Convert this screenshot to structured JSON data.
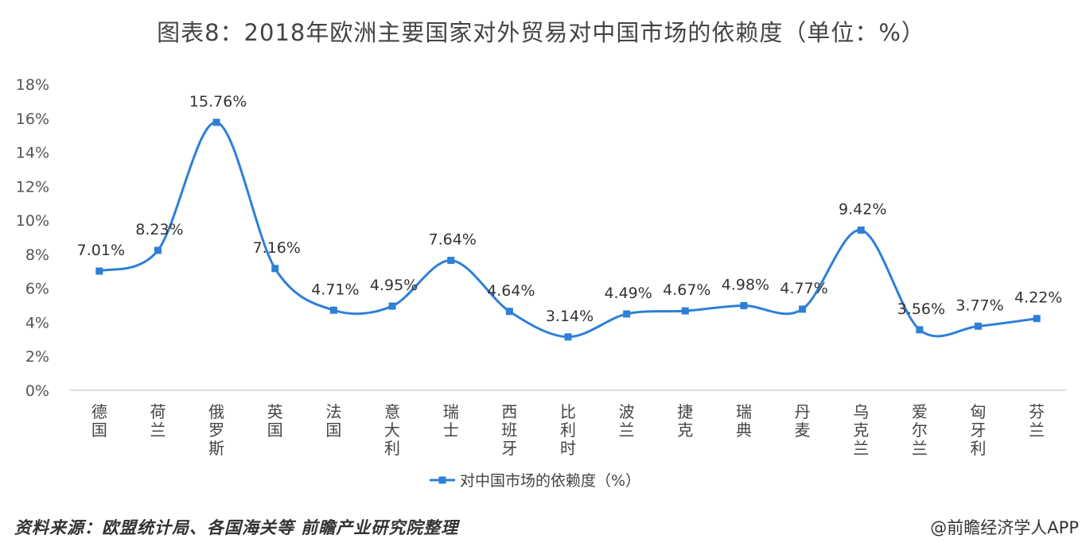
{
  "title": "图表8：2018年欧洲主要国家对外贸易对中国市场的依赖度（单位：%）",
  "source": "资料来源：欧盟统计局、各国海关等 前瞻产业研究院整理",
  "credit": "@前瞻经济学人APP",
  "colors": {
    "line": "#2e7fd6",
    "axis": "#d0d0d0"
  },
  "chart_data": {
    "type": "line",
    "categories": [
      "德国",
      "荷兰",
      "俄罗斯",
      "英国",
      "法国",
      "意大利",
      "瑞士",
      "西班牙",
      "比利时",
      "波兰",
      "捷克",
      "瑞典",
      "丹麦",
      "乌克兰",
      "爱尔兰",
      "匈牙利",
      "芬兰"
    ],
    "series": [
      {
        "name": "对中国市场的依赖度（%）",
        "values": [
          7.01,
          8.23,
          15.76,
          7.16,
          4.71,
          4.95,
          7.64,
          4.64,
          3.14,
          4.49,
          4.67,
          4.98,
          4.77,
          9.42,
          3.56,
          3.77,
          4.22
        ]
      }
    ],
    "data_labels": [
      "7.01%",
      "8.23%",
      "15.76%",
      "7.16%",
      "4.71%",
      "4.95%",
      "7.64%",
      "4.64%",
      "3.14%",
      "4.49%",
      "4.67%",
      "4.98%",
      "4.77%",
      "9.42%",
      "3.56%",
      "3.77%",
      "4.22%"
    ],
    "ylim": [
      0,
      18
    ],
    "yticks": [
      0,
      2,
      4,
      6,
      8,
      10,
      12,
      14,
      16,
      18
    ],
    "ytick_labels": [
      "0%",
      "2%",
      "4%",
      "6%",
      "8%",
      "10%",
      "12%",
      "14%",
      "16%",
      "18%"
    ],
    "smooth": true,
    "grid": false,
    "legend": "bottom-center"
  }
}
